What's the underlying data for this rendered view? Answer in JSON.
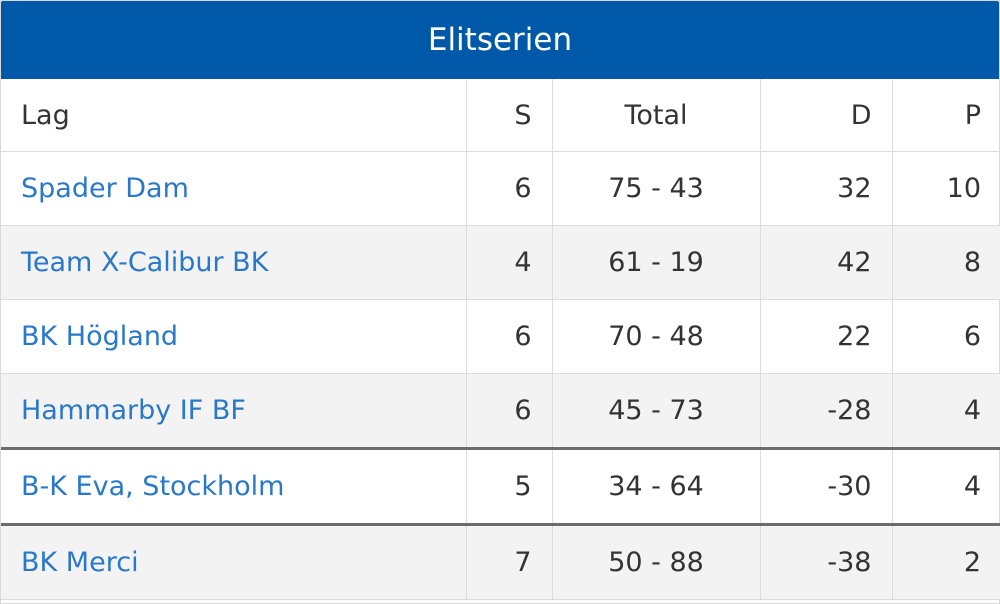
{
  "title": "Elitserien",
  "columns": {
    "lag": "Lag",
    "s": "S",
    "total": "Total",
    "d": "D",
    "p": "P"
  },
  "rows": [
    {
      "team": "Spader Dam",
      "s": "6",
      "total": "75 - 43",
      "d": "32",
      "p": "10"
    },
    {
      "team": "Team X-Calibur BK",
      "s": "4",
      "total": "61 - 19",
      "d": "42",
      "p": "8"
    },
    {
      "team": "BK Högland",
      "s": "6",
      "total": "70 - 48",
      "d": "22",
      "p": "6"
    },
    {
      "team": "Hammarby IF BF",
      "s": "6",
      "total": "45 - 73",
      "d": "-28",
      "p": "4"
    },
    {
      "team": "B-K Eva, Stockholm",
      "s": "5",
      "total": "34 - 64",
      "d": "-30",
      "p": "4"
    },
    {
      "team": "BK Merci",
      "s": "7",
      "total": "50 - 88",
      "d": "-38",
      "p": "2"
    }
  ],
  "colors": {
    "header_bg": "#0058a8",
    "link": "#2a78c8",
    "separator": "#6d6d6d"
  }
}
